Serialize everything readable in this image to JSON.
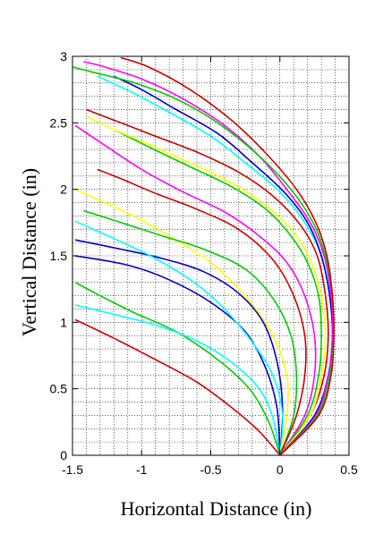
{
  "chart_data": {
    "type": "line",
    "title": "",
    "xlabel": "Horizontal Distance (in)",
    "ylabel": "Vertical Distance (in)",
    "xlim": [
      -1.5,
      0.5
    ],
    "ylim": [
      0,
      3
    ],
    "x_ticks": [
      -1.5,
      -1,
      -0.5,
      0,
      0.5
    ],
    "x_tick_labels": [
      "-1.5",
      "-1",
      "-0.5",
      "0",
      "0.5"
    ],
    "y_ticks": [
      0,
      0.5,
      1,
      1.5,
      2,
      2.5,
      3
    ],
    "y_tick_labels": [
      "0",
      "0.5",
      "1",
      "1.5",
      "2",
      "2.5",
      "3"
    ],
    "grid": true,
    "legend": "none",
    "series": [
      {
        "color": "#cc0000",
        "x": [
          0,
          -0.15,
          -0.35,
          -0.6,
          -0.9,
          -1.2,
          -1.48
        ],
        "y": [
          0,
          0.18,
          0.36,
          0.55,
          0.72,
          0.88,
          1.02
        ]
      },
      {
        "color": "#00cc00",
        "x": [
          0,
          -0.08,
          -0.22,
          -0.45,
          -0.75,
          -1.05,
          -1.3,
          -1.48
        ],
        "y": [
          0,
          0.25,
          0.5,
          0.72,
          0.93,
          1.07,
          1.2,
          1.3
        ]
      },
      {
        "color": "#00ffff",
        "x": [
          0,
          -0.05,
          -0.15,
          -0.35,
          -0.6,
          -0.9,
          -1.2,
          -1.48
        ],
        "y": [
          0,
          0.28,
          0.5,
          0.7,
          0.86,
          0.98,
          1.06,
          1.13
        ]
      },
      {
        "color": "#0000cc",
        "x": [
          0,
          -0.02,
          -0.1,
          -0.25,
          -0.5,
          -0.8,
          -1.1,
          -1.48
        ],
        "y": [
          0,
          0.35,
          0.65,
          0.93,
          1.15,
          1.32,
          1.43,
          1.5
        ]
      },
      {
        "color": "#0000cc",
        "x": [
          0,
          0.02,
          -0.02,
          -0.12,
          -0.3,
          -0.55,
          -0.85,
          -1.15,
          -1.48
        ],
        "y": [
          0,
          0.35,
          0.7,
          1.0,
          1.22,
          1.38,
          1.48,
          1.55,
          1.62
        ]
      },
      {
        "color": "#00ffff",
        "x": [
          0,
          0.02,
          -0.05,
          -0.2,
          -0.4,
          -0.62,
          -0.9,
          -1.2,
          -1.48
        ],
        "y": [
          0,
          0.3,
          0.6,
          0.85,
          1.1,
          1.3,
          1.48,
          1.63,
          1.76
        ]
      },
      {
        "color": "#ffff00",
        "x": [
          0,
          0.05,
          0.05,
          -0.05,
          -0.25,
          -0.5,
          -0.8,
          -1.1,
          -1.48
        ],
        "y": [
          0,
          0.3,
          0.6,
          0.9,
          1.2,
          1.45,
          1.65,
          1.82,
          2.0
        ]
      },
      {
        "color": "#00cc00",
        "x": [
          0,
          0.1,
          0.12,
          0.08,
          -0.05,
          -0.25,
          -0.55,
          -0.85,
          -1.15,
          -1.42
        ],
        "y": [
          0,
          0.3,
          0.6,
          0.9,
          1.18,
          1.4,
          1.55,
          1.65,
          1.75,
          1.84
        ]
      },
      {
        "color": "#cc0000",
        "x": [
          0,
          0.12,
          0.18,
          0.18,
          0.1,
          -0.05,
          -0.3,
          -0.6,
          -0.9,
          -1.15,
          -1.32
        ],
        "y": [
          0,
          0.3,
          0.6,
          0.9,
          1.2,
          1.47,
          1.7,
          1.85,
          1.97,
          2.08,
          2.15
        ]
      },
      {
        "color": "#ff00ff",
        "x": [
          0,
          0.18,
          0.25,
          0.25,
          0.18,
          0.05,
          -0.15,
          -0.4,
          -0.7,
          -1.0,
          -1.25,
          -1.48
        ],
        "y": [
          0,
          0.3,
          0.6,
          0.9,
          1.2,
          1.45,
          1.65,
          1.83,
          1.98,
          2.15,
          2.32,
          2.48
        ]
      },
      {
        "color": "#00cc00",
        "x": [
          0,
          0.2,
          0.28,
          0.3,
          0.28,
          0.2,
          0.08,
          -0.1,
          -0.35,
          -0.65,
          -0.95,
          -1.2
        ],
        "y": [
          0,
          0.3,
          0.6,
          0.9,
          1.2,
          1.45,
          1.65,
          1.85,
          2.02,
          2.17,
          2.32,
          2.45
        ]
      },
      {
        "color": "#cc0000",
        "x": [
          0,
          0.22,
          0.32,
          0.35,
          0.33,
          0.27,
          0.15,
          -0.05,
          -0.3,
          -0.6,
          -0.9,
          -1.15,
          -1.4
        ],
        "y": [
          0,
          0.3,
          0.6,
          0.9,
          1.2,
          1.5,
          1.73,
          1.95,
          2.13,
          2.28,
          2.4,
          2.5,
          2.6
        ]
      },
      {
        "color": "#ffff00",
        "x": [
          0,
          0.22,
          0.3,
          0.33,
          0.3,
          0.22,
          0.1,
          -0.1,
          -0.35,
          -0.65,
          -0.95,
          -1.2,
          -1.4
        ],
        "y": [
          0,
          0.3,
          0.6,
          0.9,
          1.2,
          1.47,
          1.68,
          1.88,
          2.05,
          2.2,
          2.34,
          2.45,
          2.55
        ]
      },
      {
        "color": "#00ffff",
        "x": [
          0,
          0.25,
          0.35,
          0.38,
          0.36,
          0.3,
          0.18,
          0.0,
          -0.25,
          -0.5,
          -0.8,
          -1.05,
          -1.32
        ],
        "y": [
          0,
          0.3,
          0.6,
          0.9,
          1.2,
          1.5,
          1.75,
          1.98,
          2.2,
          2.4,
          2.58,
          2.72,
          2.85
        ]
      },
      {
        "color": "#0000cc",
        "x": [
          0,
          0.25,
          0.35,
          0.38,
          0.36,
          0.3,
          0.2,
          0.03,
          -0.2,
          -0.45,
          -0.75,
          -1.0,
          -1.2
        ],
        "y": [
          0,
          0.3,
          0.6,
          0.9,
          1.2,
          1.5,
          1.75,
          1.98,
          2.2,
          2.42,
          2.6,
          2.75,
          2.85
        ]
      },
      {
        "color": "#ff00ff",
        "x": [
          0,
          0.26,
          0.35,
          0.38,
          0.37,
          0.32,
          0.22,
          0.05,
          -0.15,
          -0.4,
          -0.7,
          -1.0,
          -1.3,
          -1.42
        ],
        "y": [
          0,
          0.3,
          0.6,
          0.9,
          1.2,
          1.5,
          1.75,
          2.0,
          2.25,
          2.48,
          2.68,
          2.83,
          2.93,
          2.96
        ]
      },
      {
        "color": "#00cc00",
        "x": [
          0,
          0.27,
          0.36,
          0.39,
          0.38,
          0.33,
          0.24,
          0.08,
          -0.15,
          -0.45,
          -0.75,
          -1.05,
          -1.35,
          -1.5
        ],
        "y": [
          0,
          0.3,
          0.6,
          0.9,
          1.2,
          1.5,
          1.75,
          2.0,
          2.25,
          2.5,
          2.68,
          2.8,
          2.88,
          2.92
        ]
      },
      {
        "color": "#cc0000",
        "x": [
          0,
          0.28,
          0.37,
          0.39,
          0.38,
          0.34,
          0.26,
          0.12,
          -0.1,
          -0.35,
          -0.65,
          -0.95,
          -1.15
        ],
        "y": [
          0,
          0.3,
          0.6,
          0.9,
          1.2,
          1.5,
          1.75,
          2.0,
          2.27,
          2.52,
          2.75,
          2.92,
          2.99
        ]
      }
    ]
  }
}
